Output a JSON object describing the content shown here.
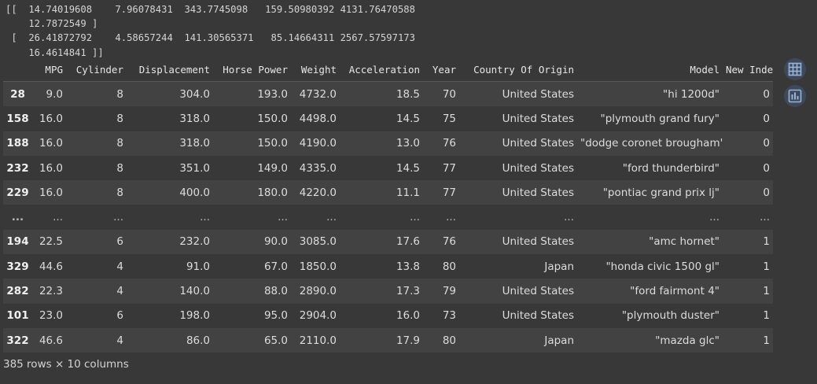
{
  "array_output": {
    "lines": [
      "[[  14.74019608    7.96078431  343.7745098   159.50980392 4131.76470588",
      "    12.7872549 ]",
      " [  26.41872792    4.58657244  141.30565371   85.14664311 2567.57597173",
      "    16.4614841 ]]"
    ]
  },
  "dataframe": {
    "columns": [
      "",
      "MPG",
      "Cylinder",
      "Displacement",
      "Horse Power",
      "Weight",
      "Acceleration",
      "Year",
      "Country Of Origin",
      "Model",
      "New Index"
    ],
    "rows": [
      [
        "28",
        "9.0",
        "8",
        "304.0",
        "193.0",
        "4732.0",
        "18.5",
        "70",
        "United States",
        "\"hi 1200d\"",
        "0"
      ],
      [
        "158",
        "16.0",
        "8",
        "318.0",
        "150.0",
        "4498.0",
        "14.5",
        "75",
        "United States",
        "\"plymouth grand fury\"",
        "0"
      ],
      [
        "188",
        "16.0",
        "8",
        "318.0",
        "150.0",
        "4190.0",
        "13.0",
        "76",
        "United States",
        "\"dodge coronet brougham\"",
        "0"
      ],
      [
        "232",
        "16.0",
        "8",
        "351.0",
        "149.0",
        "4335.0",
        "14.5",
        "77",
        "United States",
        "\"ford thunderbird\"",
        "0"
      ],
      [
        "229",
        "16.0",
        "8",
        "400.0",
        "180.0",
        "4220.0",
        "11.1",
        "77",
        "United States",
        "\"pontiac grand prix lj\"",
        "0"
      ],
      [
        "...",
        "...",
        "...",
        "...",
        "...",
        "...",
        "...",
        "...",
        "...",
        "...",
        "..."
      ],
      [
        "194",
        "22.5",
        "6",
        "232.0",
        "90.0",
        "3085.0",
        "17.6",
        "76",
        "United States",
        "\"amc hornet\"",
        "1"
      ],
      [
        "329",
        "44.6",
        "4",
        "91.0",
        "67.0",
        "1850.0",
        "13.8",
        "80",
        "Japan",
        "\"honda civic 1500 gl\"",
        "1"
      ],
      [
        "282",
        "22.3",
        "4",
        "140.0",
        "88.0",
        "2890.0",
        "17.3",
        "79",
        "United States",
        "\"ford fairmont 4\"",
        "1"
      ],
      [
        "101",
        "23.0",
        "6",
        "198.0",
        "95.0",
        "2904.0",
        "16.0",
        "73",
        "United States",
        "\"plymouth duster\"",
        "1"
      ],
      [
        "322",
        "46.6",
        "4",
        "86.0",
        "65.0",
        "2110.0",
        "17.9",
        "80",
        "Japan",
        "\"mazda glc\"",
        "1"
      ]
    ],
    "shape_label": "385 rows × 10 columns"
  },
  "side_buttons": [
    {
      "icon": "table-icon",
      "color": "#9ab4d8"
    },
    {
      "icon": "bar-chart-icon",
      "color": "#9ab4d8"
    }
  ]
}
